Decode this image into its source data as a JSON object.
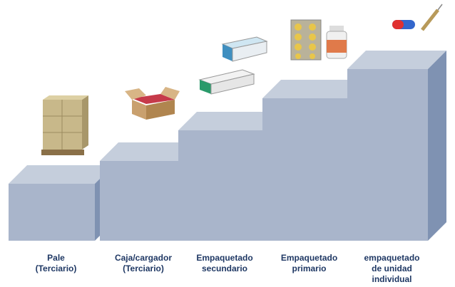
{
  "steps": [
    {
      "label_lines": [
        "Pale",
        "(Terciario)"
      ]
    },
    {
      "label_lines": [
        "Caja/cargador",
        "(Terciario)"
      ]
    },
    {
      "label_lines": [
        "Empaquetado",
        "secundario"
      ]
    },
    {
      "label_lines": [
        "Empaquetado",
        "primario"
      ]
    },
    {
      "label_lines": [
        "empaquetado",
        "de unidad",
        "individual"
      ]
    }
  ]
}
